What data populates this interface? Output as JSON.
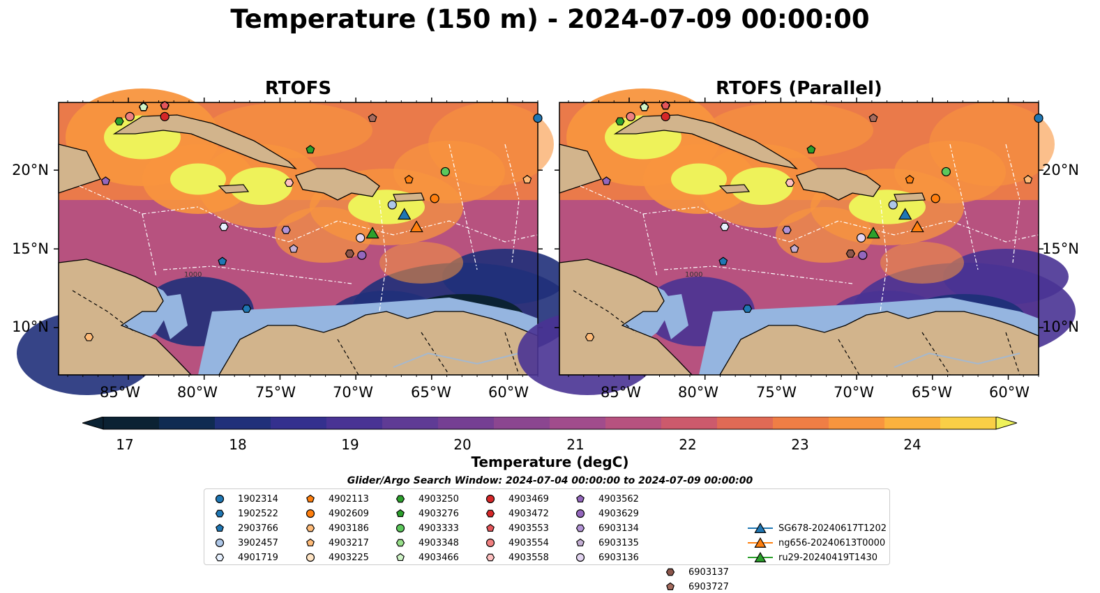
{
  "title": "Temperature (150 m) - 2024-07-09 00:00:00",
  "panels": [
    {
      "title": "RTOFS"
    },
    {
      "title": "RTOFS (Parallel)"
    }
  ],
  "axes": {
    "lat_ticks": [
      "10°N",
      "15°N",
      "20°N"
    ],
    "lon_ticks": [
      "85°W",
      "80°W",
      "75°W",
      "70°W",
      "65°W",
      "60°W"
    ]
  },
  "colorbar": {
    "label": "Temperature (degC)",
    "ticks": [
      "17",
      "18",
      "19",
      "20",
      "21",
      "22",
      "23",
      "24"
    ],
    "range": [
      17,
      24.5
    ],
    "colors": [
      "#0b2233",
      "#0f2b52",
      "#20307a",
      "#34308e",
      "#493394",
      "#5f3b95",
      "#753f93",
      "#8b4690",
      "#a14c8c",
      "#b7527f",
      "#cc5a6c",
      "#e06a55",
      "#ef7e45",
      "#f8953e",
      "#fbb23e",
      "#f9cf46",
      "#eef25a"
    ]
  },
  "search_window": "Glider/Argo Search Window: 2024-07-04 00:00:00 to 2024-07-09 00:00:00",
  "legend": [
    {
      "label": "1902314",
      "marker": "circle",
      "color": "#1f77b4"
    },
    {
      "label": "1902522",
      "marker": "hexagon",
      "color": "#1f77b4"
    },
    {
      "label": "2903766",
      "marker": "pentagon",
      "color": "#1f77b4"
    },
    {
      "label": "3902457",
      "marker": "circle",
      "color": "#aec7e8"
    },
    {
      "label": "4901719",
      "marker": "hexagon",
      "color": "#e7f1ff"
    },
    {
      "label": "4902113",
      "marker": "pentagon",
      "color": "#ff7f0e"
    },
    {
      "label": "4902609",
      "marker": "circle",
      "color": "#ff7f0e"
    },
    {
      "label": "4903186",
      "marker": "hexagon",
      "color": "#ffbb78"
    },
    {
      "label": "4903217",
      "marker": "pentagon",
      "color": "#ffbb78"
    },
    {
      "label": "4903225",
      "marker": "circle",
      "color": "#ffe4c4"
    },
    {
      "label": "4903250",
      "marker": "hexagon",
      "color": "#2ca02c"
    },
    {
      "label": "4903276",
      "marker": "pentagon",
      "color": "#2ca02c"
    },
    {
      "label": "4903333",
      "marker": "circle",
      "color": "#5cc85c"
    },
    {
      "label": "4903348",
      "marker": "hexagon",
      "color": "#98df8a"
    },
    {
      "label": "4903466",
      "marker": "pentagon",
      "color": "#d0f5c8"
    },
    {
      "label": "4903469",
      "marker": "circle",
      "color": "#d62728"
    },
    {
      "label": "4903472",
      "marker": "hexagon",
      "color": "#d62728"
    },
    {
      "label": "4903553",
      "marker": "pentagon",
      "color": "#e6555a"
    },
    {
      "label": "4903554",
      "marker": "circle",
      "color": "#f08080"
    },
    {
      "label": "4903558",
      "marker": "hexagon",
      "color": "#ffc0c0"
    },
    {
      "label": "4903562",
      "marker": "pentagon",
      "color": "#9467bd"
    },
    {
      "label": "4903629",
      "marker": "circle",
      "color": "#9467bd"
    },
    {
      "label": "6903134",
      "marker": "hexagon",
      "color": "#b394d6"
    },
    {
      "label": "6903135",
      "marker": "pentagon",
      "color": "#c5b0d5"
    },
    {
      "label": "6903136",
      "marker": "circle",
      "color": "#e2d4f0"
    },
    {
      "label": "6903137",
      "marker": "hexagon",
      "color": "#8c564b"
    },
    {
      "label": "6903727",
      "marker": "pentagon",
      "color": "#a56b5e"
    },
    {
      "label": "SG678-20240617T1202",
      "marker": "triangle-line",
      "color": "#1f77b4"
    },
    {
      "label": "ng656-20240613T0000",
      "marker": "triangle-line",
      "color": "#ff7f0e"
    },
    {
      "label": "ru29-20240419T1430",
      "marker": "triangle-line",
      "color": "#2ca02c"
    }
  ],
  "map": {
    "lon_range": [
      -89.6,
      -58.0
    ],
    "lat_range": [
      7.0,
      24.3
    ],
    "land_color": "#d2b48c",
    "shelf_color": "#95b5e0",
    "contour_label": "1000",
    "positions": [
      {
        "label": "1902314",
        "lon": -58.0,
        "lat": 23.3
      },
      {
        "label": "1902522",
        "lon": -77.2,
        "lat": 11.2
      },
      {
        "label": "2903766",
        "lon": -78.8,
        "lat": 14.2
      },
      {
        "label": "3902457",
        "lon": -67.6,
        "lat": 17.8
      },
      {
        "label": "4901719",
        "lon": -78.7,
        "lat": 16.4
      },
      {
        "label": "4902113",
        "lon": -66.5,
        "lat": 19.4
      },
      {
        "label": "4902609",
        "lon": -64.8,
        "lat": 18.2
      },
      {
        "label": "4903186",
        "lon": -87.6,
        "lat": 9.4
      },
      {
        "label": "4903217",
        "lon": -58.7,
        "lat": 19.4
      },
      {
        "label": "4903225",
        "lon": -84.9,
        "lat": 23.4
      },
      {
        "label": "4903250",
        "lon": -85.6,
        "lat": 23.1
      },
      {
        "label": "4903276",
        "lon": -73.0,
        "lat": 21.3
      },
      {
        "label": "4903333",
        "lon": -64.1,
        "lat": 19.9
      },
      {
        "label": "4903348",
        "lon": -84.0,
        "lat": 24.0
      },
      {
        "label": "4903466",
        "lon": -84.0,
        "lat": 24.0
      },
      {
        "label": "4903469",
        "lon": -82.6,
        "lat": 23.4
      },
      {
        "label": "4903472",
        "lon": -82.6,
        "lat": 24.1
      },
      {
        "label": "4903553",
        "lon": -82.6,
        "lat": 24.1
      },
      {
        "label": "4903554",
        "lon": -84.9,
        "lat": 23.4
      },
      {
        "label": "4903558",
        "lon": -74.4,
        "lat": 19.2
      },
      {
        "label": "4903562",
        "lon": -86.5,
        "lat": 19.3
      },
      {
        "label": "4903629",
        "lon": -69.6,
        "lat": 14.6
      },
      {
        "label": "6903134",
        "lon": -74.6,
        "lat": 16.2
      },
      {
        "label": "6903135",
        "lon": -74.1,
        "lat": 15.0
      },
      {
        "label": "6903136",
        "lon": -69.7,
        "lat": 15.7
      },
      {
        "label": "6903137",
        "lon": -70.4,
        "lat": 14.7
      },
      {
        "label": "6903727",
        "lon": -68.9,
        "lat": 23.3
      },
      {
        "label": "SG678-20240617T1202",
        "lon": -66.8,
        "lat": 17.2
      },
      {
        "label": "ng656-20240613T0000",
        "lon": -66.0,
        "lat": 16.4
      },
      {
        "label": "ru29-20240419T1430",
        "lon": -68.9,
        "lat": 16.0
      }
    ]
  }
}
